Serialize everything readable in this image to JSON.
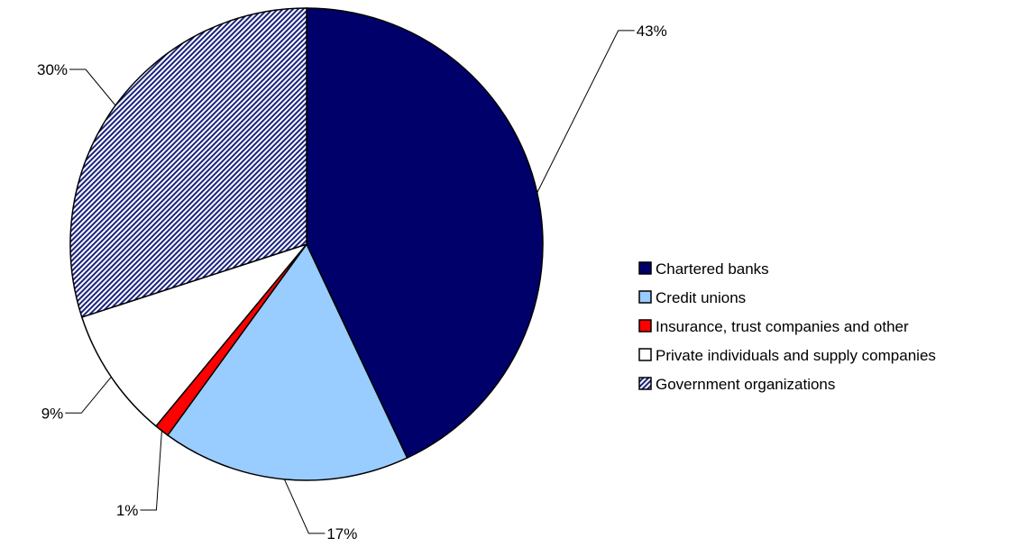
{
  "chart_data": {
    "type": "pie",
    "title": "",
    "legend_position": "right",
    "slices": [
      {
        "label": "Chartered banks",
        "value": 43,
        "value_label": "43%",
        "color": "#00006b",
        "pattern": "none"
      },
      {
        "label": "Credit unions",
        "value": 17,
        "value_label": "17%",
        "color": "#99ccff",
        "pattern": "none"
      },
      {
        "label": "Insurance, trust companies and other",
        "value": 1,
        "value_label": "1%",
        "color": "#ff0000",
        "pattern": "none"
      },
      {
        "label": "Private individuals and supply companies",
        "value": 9,
        "value_label": "9%",
        "color": "#ffffff",
        "pattern": "none"
      },
      {
        "label": "Government organizations",
        "value": 30,
        "value_label": "30%",
        "color": "#1a237e",
        "pattern": "diagonal-hatch"
      }
    ]
  }
}
